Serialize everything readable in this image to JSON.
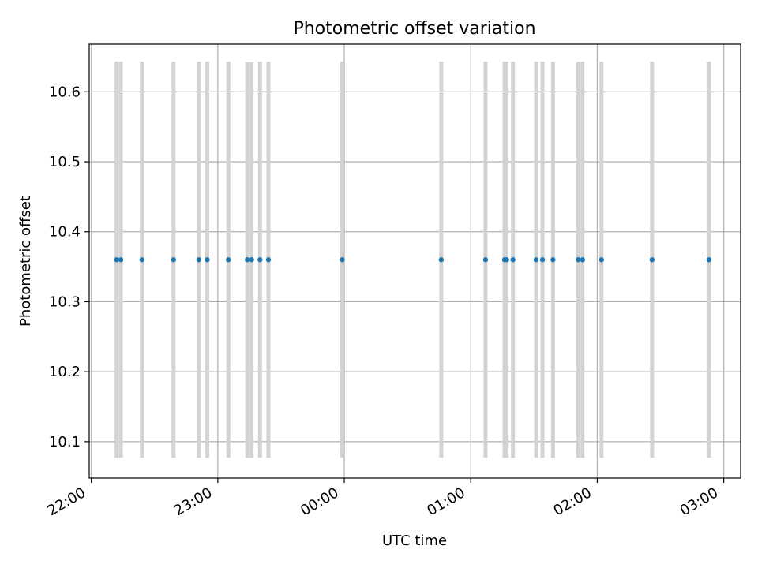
{
  "chart_data": {
    "type": "scatter",
    "title": "Photometric offset variation",
    "xlabel": "UTC time",
    "ylabel": "Photometric offset",
    "x_unit": "UTC clock time (minutes)",
    "xlim": [
      "21:59",
      "03:08"
    ],
    "ylim": [
      10.048,
      10.668
    ],
    "xticks": [
      "22:00",
      "23:00",
      "00:00",
      "01:00",
      "02:00",
      "03:00"
    ],
    "yticks": [
      10.1,
      10.2,
      10.3,
      10.4,
      10.5,
      10.6
    ],
    "grid": true,
    "legend": "none",
    "x": [
      "22:12",
      "22:14",
      "22:24",
      "22:39",
      "22:51",
      "22:55",
      "23:05",
      "23:14",
      "23:16",
      "23:20",
      "23:24",
      "23:59",
      "00:46",
      "01:07",
      "01:16",
      "01:17",
      "01:20",
      "01:31",
      "01:34",
      "01:39",
      "01:51",
      "01:53",
      "02:02",
      "02:26",
      "02:53"
    ],
    "y": [
      10.36,
      10.36,
      10.36,
      10.36,
      10.36,
      10.36,
      10.36,
      10.36,
      10.36,
      10.36,
      10.36,
      10.36,
      10.36,
      10.36,
      10.36,
      10.36,
      10.36,
      10.36,
      10.36,
      10.36,
      10.36,
      10.36,
      10.36,
      10.36,
      10.36
    ],
    "bar_low": 10.077,
    "bar_high": 10.643,
    "colors": {
      "marker": "#1f77b4",
      "bar": "#d3d3d3",
      "grid": "#b0b0b0"
    }
  }
}
